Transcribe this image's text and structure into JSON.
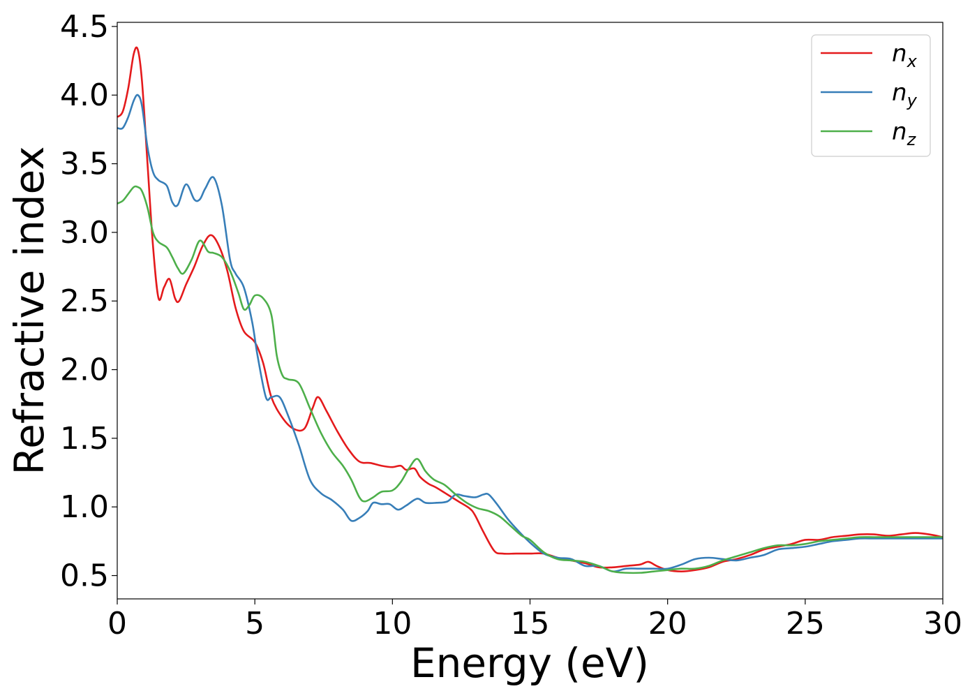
{
  "chart_data": {
    "type": "line",
    "title": "",
    "xlabel": "Energy (eV)",
    "ylabel": "Refractive index",
    "xlim": [
      0,
      30
    ],
    "ylim": [
      0.33,
      4.53
    ],
    "xticks": [
      0,
      5,
      10,
      15,
      20,
      25,
      30
    ],
    "yticks": [
      0.5,
      1.0,
      1.5,
      2.0,
      2.5,
      3.0,
      3.5,
      4.0,
      4.5
    ],
    "xtick_labels": [
      "0",
      "5",
      "10",
      "15",
      "20",
      "25",
      "30"
    ],
    "ytick_labels": [
      "0.5",
      "1.0",
      "1.5",
      "2.0",
      "2.5",
      "3.0",
      "3.5",
      "4.0",
      "4.5"
    ],
    "grid": false,
    "legend_position": "top-right",
    "series": [
      {
        "name": "n",
        "subscript": "x",
        "color": "#e41a1c",
        "x": [
          0,
          0.2,
          0.4,
          0.6,
          0.75,
          0.9,
          1.1,
          1.3,
          1.5,
          1.7,
          1.9,
          2.1,
          2.25,
          2.5,
          2.8,
          3.1,
          3.4,
          3.7,
          4.0,
          4.3,
          4.6,
          5.0,
          5.3,
          5.6,
          6.0,
          6.4,
          6.8,
          7.1,
          7.3,
          7.6,
          8.0,
          8.4,
          8.8,
          9.2,
          9.6,
          10.0,
          10.3,
          10.5,
          10.8,
          11.0,
          11.3,
          11.6,
          12.0,
          12.4,
          12.8,
          13.0,
          13.3,
          13.7,
          14.0,
          14.5,
          15.0,
          15.5,
          16.0,
          16.5,
          17.0,
          17.5,
          18.0,
          18.5,
          19.0,
          19.3,
          19.6,
          20.0,
          20.5,
          21.0,
          21.5,
          22.0,
          22.5,
          23.0,
          23.5,
          24.0,
          24.5,
          25.0,
          25.5,
          26.0,
          26.5,
          27.0,
          27.5,
          28.0,
          28.5,
          29.0,
          29.5,
          30.0
        ],
        "y": [
          3.84,
          3.88,
          4.05,
          4.3,
          4.33,
          4.1,
          3.5,
          2.9,
          2.52,
          2.6,
          2.66,
          2.52,
          2.5,
          2.62,
          2.75,
          2.9,
          2.98,
          2.9,
          2.72,
          2.45,
          2.28,
          2.2,
          2.05,
          1.8,
          1.65,
          1.57,
          1.57,
          1.72,
          1.8,
          1.7,
          1.55,
          1.42,
          1.33,
          1.32,
          1.3,
          1.29,
          1.3,
          1.27,
          1.28,
          1.22,
          1.17,
          1.14,
          1.09,
          1.04,
          0.99,
          0.94,
          0.82,
          0.68,
          0.66,
          0.66,
          0.66,
          0.66,
          0.63,
          0.61,
          0.59,
          0.56,
          0.56,
          0.57,
          0.58,
          0.6,
          0.57,
          0.54,
          0.53,
          0.54,
          0.56,
          0.6,
          0.62,
          0.65,
          0.69,
          0.71,
          0.73,
          0.76,
          0.76,
          0.78,
          0.79,
          0.8,
          0.8,
          0.79,
          0.8,
          0.81,
          0.8,
          0.78
        ]
      },
      {
        "name": "n",
        "subscript": "y",
        "color": "#377eb8",
        "x": [
          0,
          0.2,
          0.4,
          0.6,
          0.75,
          0.9,
          1.1,
          1.3,
          1.5,
          1.8,
          2.0,
          2.2,
          2.5,
          2.8,
          3.0,
          3.2,
          3.5,
          3.8,
          4.1,
          4.3,
          4.6,
          4.9,
          5.1,
          5.4,
          5.6,
          5.9,
          6.2,
          6.6,
          7.0,
          7.4,
          7.8,
          8.2,
          8.5,
          8.8,
          9.1,
          9.3,
          9.6,
          9.9,
          10.2,
          10.5,
          10.9,
          11.2,
          11.6,
          12.0,
          12.3,
          12.6,
          13.0,
          13.3,
          13.5,
          13.8,
          14.2,
          14.6,
          15.0,
          15.5,
          16.0,
          16.5,
          17.0,
          17.5,
          18.0,
          18.5,
          19.0,
          19.5,
          20.0,
          20.5,
          21.0,
          21.5,
          22.0,
          22.5,
          23.0,
          23.5,
          24.0,
          24.5,
          25.0,
          25.5,
          26.0,
          26.5,
          27.0,
          27.5,
          28.0,
          28.5,
          29.0,
          29.5,
          30.0
        ],
        "y": [
          3.76,
          3.76,
          3.84,
          3.96,
          4.0,
          3.92,
          3.62,
          3.44,
          3.38,
          3.34,
          3.22,
          3.2,
          3.35,
          3.24,
          3.24,
          3.32,
          3.4,
          3.2,
          2.8,
          2.7,
          2.6,
          2.35,
          2.1,
          1.8,
          1.8,
          1.8,
          1.67,
          1.45,
          1.2,
          1.1,
          1.05,
          0.98,
          0.9,
          0.92,
          0.97,
          1.03,
          1.02,
          1.02,
          0.98,
          1.01,
          1.06,
          1.03,
          1.03,
          1.04,
          1.09,
          1.08,
          1.07,
          1.09,
          1.09,
          1.02,
          0.91,
          0.82,
          0.74,
          0.66,
          0.63,
          0.62,
          0.57,
          0.57,
          0.53,
          0.55,
          0.55,
          0.55,
          0.55,
          0.58,
          0.62,
          0.63,
          0.62,
          0.61,
          0.63,
          0.65,
          0.69,
          0.7,
          0.71,
          0.73,
          0.75,
          0.76,
          0.77,
          0.77,
          0.77,
          0.77,
          0.77,
          0.77,
          0.77
        ]
      },
      {
        "name": "n",
        "subscript": "z",
        "color": "#4daf4a",
        "x": [
          0,
          0.2,
          0.4,
          0.6,
          0.75,
          0.9,
          1.1,
          1.3,
          1.5,
          1.8,
          2.0,
          2.2,
          2.4,
          2.7,
          3.0,
          3.3,
          3.5,
          3.8,
          4.1,
          4.4,
          4.6,
          4.8,
          5.0,
          5.3,
          5.6,
          5.8,
          6.0,
          6.2,
          6.6,
          7.0,
          7.4,
          7.8,
          8.2,
          8.5,
          8.8,
          9.0,
          9.3,
          9.6,
          10.0,
          10.3,
          10.6,
          10.9,
          11.2,
          11.5,
          11.9,
          12.3,
          12.7,
          13.1,
          13.5,
          13.9,
          14.3,
          14.7,
          15.0,
          15.5,
          16.0,
          16.5,
          17.0,
          17.5,
          18.0,
          18.5,
          19.0,
          19.5,
          20.0,
          20.5,
          21.0,
          21.5,
          22.0,
          22.5,
          23.0,
          23.5,
          24.0,
          24.5,
          25.0,
          25.5,
          26.0,
          26.5,
          27.0,
          27.5,
          28.0,
          28.5,
          29.0,
          29.5,
          30.0
        ],
        "y": [
          3.21,
          3.23,
          3.28,
          3.33,
          3.33,
          3.3,
          3.18,
          3.0,
          2.93,
          2.89,
          2.82,
          2.74,
          2.7,
          2.8,
          2.94,
          2.86,
          2.85,
          2.82,
          2.72,
          2.56,
          2.44,
          2.47,
          2.54,
          2.52,
          2.4,
          2.1,
          1.96,
          1.93,
          1.9,
          1.72,
          1.54,
          1.4,
          1.3,
          1.2,
          1.07,
          1.04,
          1.07,
          1.11,
          1.12,
          1.18,
          1.28,
          1.35,
          1.26,
          1.2,
          1.16,
          1.09,
          1.03,
          0.99,
          0.97,
          0.93,
          0.86,
          0.79,
          0.76,
          0.67,
          0.62,
          0.61,
          0.6,
          0.57,
          0.53,
          0.52,
          0.52,
          0.53,
          0.54,
          0.55,
          0.55,
          0.57,
          0.61,
          0.64,
          0.67,
          0.7,
          0.72,
          0.72,
          0.73,
          0.75,
          0.76,
          0.77,
          0.78,
          0.78,
          0.78,
          0.78,
          0.78,
          0.78,
          0.78
        ]
      }
    ]
  }
}
